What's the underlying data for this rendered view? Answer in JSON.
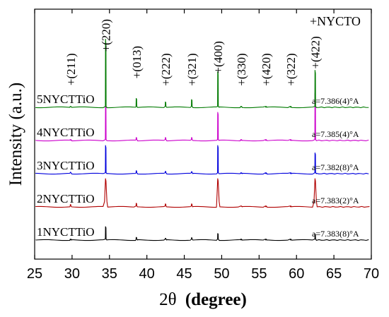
{
  "chart_data": {
    "type": "line",
    "title": "",
    "xlabel_prefix": "2θ",
    "xlabel_bold": "(degree)",
    "ylabel": "Intensity (a.u.)",
    "xlim": [
      25,
      70
    ],
    "x_ticks": [
      25,
      30,
      35,
      40,
      45,
      50,
      55,
      60,
      65,
      70
    ],
    "x_tick_labels": [
      "25",
      "30",
      "35",
      "40",
      "45",
      "50",
      "55",
      "60",
      "65",
      "70"
    ],
    "legend_label": "+NYCTO",
    "peaks": [
      {
        "label": "+(211)",
        "x": 29.8,
        "label_level": 0.7
      },
      {
        "label": "+(220)",
        "x": 34.5,
        "label_level": 0.0
      },
      {
        "label": "+(013)",
        "x": 38.6,
        "label_level": 0.55
      },
      {
        "label": "+(222)",
        "x": 42.5,
        "label_level": 0.7
      },
      {
        "label": "+(321)",
        "x": 46.0,
        "label_level": 0.7
      },
      {
        "label": "+(400)",
        "x": 49.5,
        "label_level": 0.45
      },
      {
        "label": "+(330)",
        "x": 52.6,
        "label_level": 0.7
      },
      {
        "label": "+(420)",
        "x": 55.9,
        "label_level": 0.7
      },
      {
        "label": "+(322)",
        "x": 59.2,
        "label_level": 0.7
      },
      {
        "label": "+(422)",
        "x": 62.5,
        "label_level": 0.35
      }
    ],
    "series": [
      {
        "name": "1NYCTTiO",
        "lattice": "a=7.383(8)°A",
        "color": "#000000",
        "baseline": 0.0,
        "intensities": [
          0.005,
          0.45,
          0.09,
          0.06,
          0.08,
          0.22,
          0.004,
          0.004,
          0.004,
          0.2
        ],
        "wide_base": false
      },
      {
        "name": "2NYCTTiO",
        "lattice": "a=7.383(2)°A",
        "color": "#b00000",
        "baseline": 1.0,
        "intensities": [
          0.08,
          0.95,
          0.12,
          0.1,
          0.1,
          0.95,
          0.02,
          0.005,
          0.005,
          0.95
        ],
        "wide_base": true
      },
      {
        "name": "3NYCTTiO",
        "lattice": "a=7.382(8)°A",
        "color": "#0000dd",
        "baseline": 2.0,
        "intensities": [
          0.05,
          0.95,
          0.1,
          0.08,
          0.07,
          0.95,
          0.01,
          0.004,
          0.004,
          0.7
        ],
        "wide_base": false
      },
      {
        "name": "4NYCTTiO",
        "lattice": "a=7.385(4)°A",
        "color": "#cc00cc",
        "baseline": 3.0,
        "intensities": [
          0.01,
          1.2,
          0.1,
          0.1,
          0.1,
          0.95,
          0.006,
          0.004,
          0.004,
          1.6
        ],
        "wide_base": false
      },
      {
        "name": "5NYCTTiO",
        "lattice": "a=7.386(4)°A",
        "color": "#007a00",
        "baseline": 4.0,
        "intensities": [
          0.02,
          2.3,
          0.3,
          0.18,
          0.26,
          1.2,
          0.012,
          0.006,
          0.006,
          1.25
        ],
        "wide_base": false
      }
    ]
  }
}
